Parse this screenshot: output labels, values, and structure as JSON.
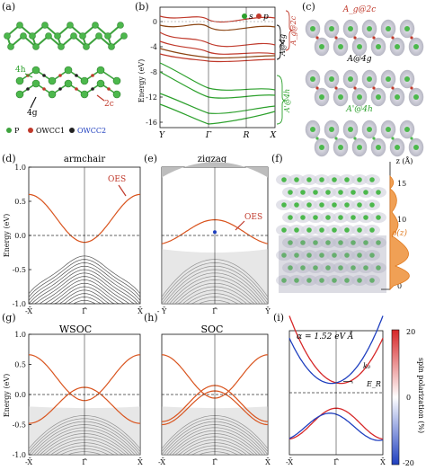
{
  "panel_labels": [
    "(a)",
    "(b)",
    "(c)",
    "(d)",
    "(e)",
    "(f)",
    "(g)",
    "(h)",
    "(i)"
  ],
  "legend_a": {
    "site_4h": "4h",
    "site_4g": "4g",
    "site_2c": "2c",
    "items": [
      {
        "label": "P",
        "color": "#3ea33e"
      },
      {
        "label": "OWCC1",
        "color": "#c0392b"
      },
      {
        "label": "OWCC2",
        "color": "#222222"
      }
    ]
  },
  "panel_b": {
    "ylabel": "Energy (eV)",
    "yticks": [
      "0",
      "-4",
      "-8",
      "-12",
      "-16"
    ],
    "xticks": [
      "Y",
      "Γ",
      "R",
      "X"
    ],
    "legend": [
      {
        "label": "s",
        "color": "#2ca02c"
      },
      {
        "label": "p",
        "color": "#c0392b"
      }
    ],
    "brace_labels": [
      "A@4g",
      "A_g@2c",
      "A'@4h"
    ]
  },
  "panel_c": {
    "titles": [
      "A_g@2c",
      "A@4g",
      "A'@4h"
    ]
  },
  "panel_d": {
    "title": "armchair",
    "annotation": "OES",
    "xticks": [
      "-X̄",
      "Γ̄",
      "X̄"
    ]
  },
  "panel_e": {
    "title": "zigzag",
    "annotation": "OES",
    "xticks": [
      "- Ȳ",
      "Γ̄",
      "Ȳ"
    ]
  },
  "panel_f": {
    "zlabel": "z (Å)",
    "zticks": [
      "15",
      "10",
      "5",
      "0"
    ],
    "rho_label": "ρ(z)"
  },
  "panel_g": {
    "title": "WSOC",
    "xticks": [
      "-X̄",
      "Γ̄",
      "X̄"
    ]
  },
  "panel_h": {
    "title": "SOC",
    "xticks": [
      "-X̄",
      "Γ̄",
      "X̄"
    ]
  },
  "panel_i": {
    "alpha_label": "α = 1.52 eV Å",
    "k0_label": "k₀",
    "er_label": "E_R",
    "colorbar_label": "spin polarization (%)",
    "colorbar_ticks": [
      "20",
      "0",
      "-20"
    ],
    "xticks": [
      "-X̄",
      "Γ̄",
      "X̄"
    ]
  },
  "energy_axis": {
    "ylabel": "Energy (eV)",
    "yticks": [
      "1.0",
      "0.5",
      "0.0",
      "-0.5",
      "-1.0"
    ]
  }
}
